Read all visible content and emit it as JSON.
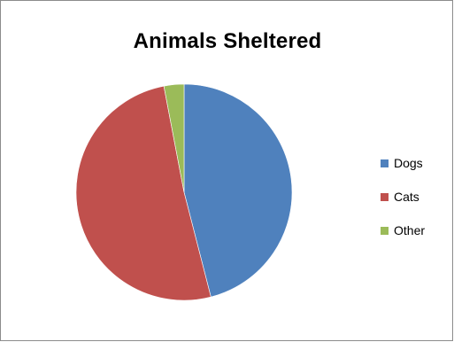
{
  "chart_data": {
    "type": "pie",
    "title": "Animals Sheltered",
    "categories": [
      "Dogs",
      "Cats",
      "Other"
    ],
    "values": [
      46,
      51,
      3
    ],
    "colors": [
      "#4f81bd",
      "#c0504d",
      "#9bbb59"
    ],
    "legend_position": "right"
  }
}
